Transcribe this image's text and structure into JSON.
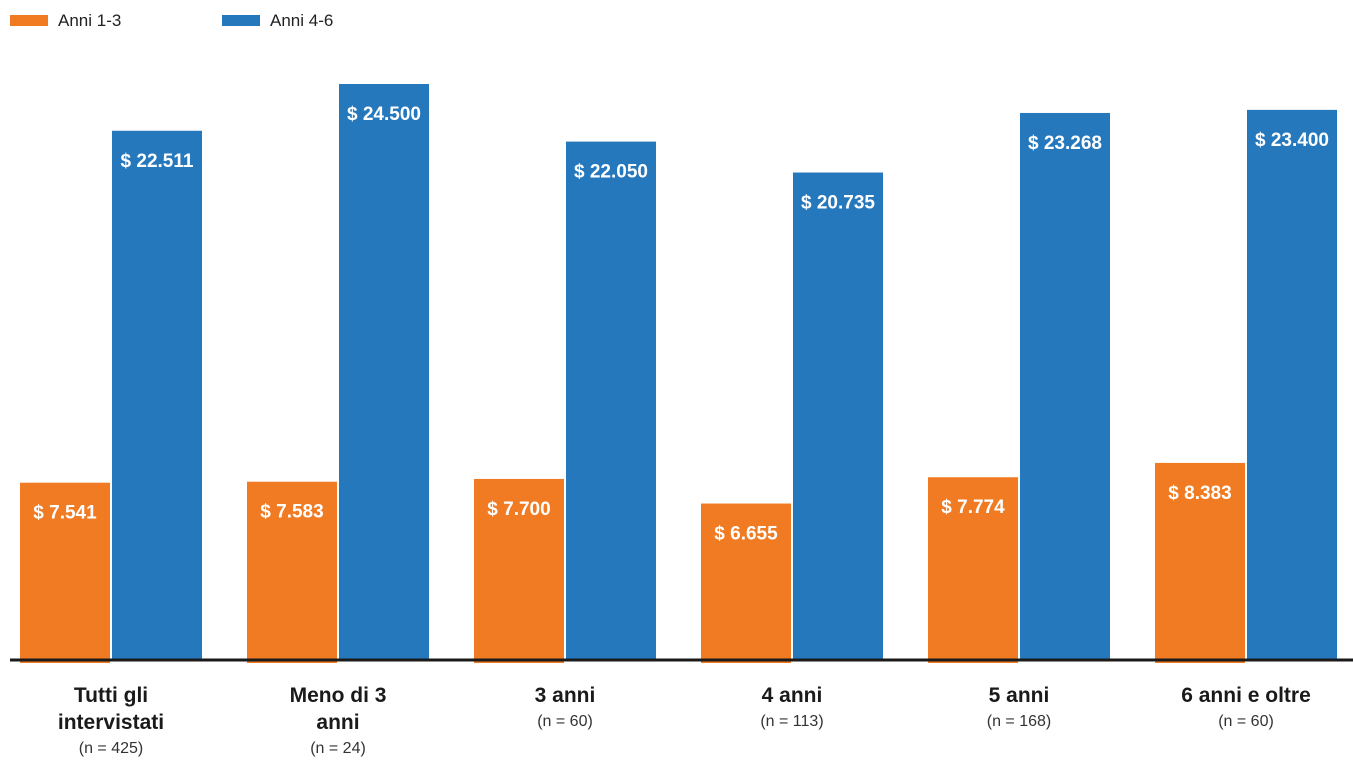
{
  "chart_data": {
    "type": "bar",
    "categories": [
      {
        "label_lines": [
          "Tutti gli",
          "intervistati"
        ],
        "n": "(n = 425)"
      },
      {
        "label_lines": [
          "Meno di 3",
          "anni"
        ],
        "n": "(n = 24)"
      },
      {
        "label_lines": [
          "3 anni"
        ],
        "n": "(n = 60)"
      },
      {
        "label_lines": [
          "4 anni"
        ],
        "n": "(n = 113)"
      },
      {
        "label_lines": [
          "5 anni"
        ],
        "n": "(n = 168)"
      },
      {
        "label_lines": [
          "6 anni e oltre"
        ],
        "n": "(n = 60)"
      }
    ],
    "series": [
      {
        "name": "Anni 1-3",
        "color": "#f07b22",
        "values": [
          7541,
          7583,
          7700,
          6655,
          7774,
          8383
        ],
        "labels": [
          "$ 7.541",
          "$ 7.583",
          "$ 7.700",
          "$ 6.655",
          "$ 7.774",
          "$ 8.383"
        ]
      },
      {
        "name": "Anni 4-6",
        "color": "#2678bd",
        "values": [
          22511,
          24500,
          22050,
          20735,
          23268,
          23400
        ],
        "labels": [
          "$ 22.511",
          "$ 24.500",
          "$ 22.050",
          "$ 20.735",
          "$ 23.268",
          "$ 23.400"
        ]
      }
    ],
    "ylim": [
      0,
      26000
    ],
    "grid": false,
    "legend_position": "top-left",
    "title": "",
    "xlabel": "",
    "ylabel": ""
  }
}
